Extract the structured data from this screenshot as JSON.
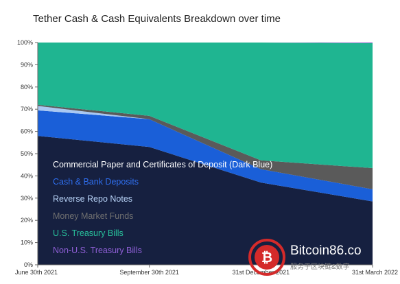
{
  "chart_data": {
    "type": "area",
    "stacked": true,
    "percent": true,
    "title": "Tether Cash & Cash Equivalents  Breakdown over time",
    "xlabel": "",
    "ylabel": "",
    "categories": [
      "June 30th 2021",
      "September 30th 2021",
      "31st December 2021",
      "31st March 2022"
    ],
    "ylim": [
      0,
      100
    ],
    "yticks": [
      "0%",
      "10%",
      "20%",
      "30%",
      "40%",
      "50%",
      "60%",
      "70%",
      "80%",
      "90%",
      "100%"
    ],
    "grid": false,
    "legend_placement": "bottom-left, inside plot",
    "series": [
      {
        "name": "Commercial Paper and Certificates of Deposit (Dark Blue)",
        "values": [
          58,
          53,
          37,
          28.5
        ],
        "color": "#162040",
        "text_color": "#ffffff"
      },
      {
        "name": "Cash & Bank Deposits",
        "values": [
          11.5,
          12.5,
          6,
          5.5
        ],
        "color": "#1a5fd8",
        "text_color": "#2f6ff0"
      },
      {
        "name": "Reverse Repo Notes",
        "values": [
          2,
          0,
          0,
          0
        ],
        "color": "#a9c8f2",
        "text_color": "#b8d3f7"
      },
      {
        "name": "Money Market Funds",
        "values": [
          0.5,
          1.5,
          4,
          9.5
        ],
        "color": "#5a5a5a",
        "text_color": "#707070"
      },
      {
        "name": "U.S. Treasury Bills",
        "values": [
          28,
          33,
          53,
          56.2
        ],
        "color": "#1fb591",
        "text_color": "#28c29c"
      },
      {
        "name": "Non-U.S. Treasury Bills",
        "values": [
          0,
          0,
          0,
          0.3
        ],
        "color": "#7d4fc4",
        "text_color": "#8f5fd6"
      }
    ]
  },
  "watermark": {
    "icon": "bitcoin-logo-icon",
    "text": "Bitcoin86.co",
    "subtext": "服务于区块链&数字"
  }
}
